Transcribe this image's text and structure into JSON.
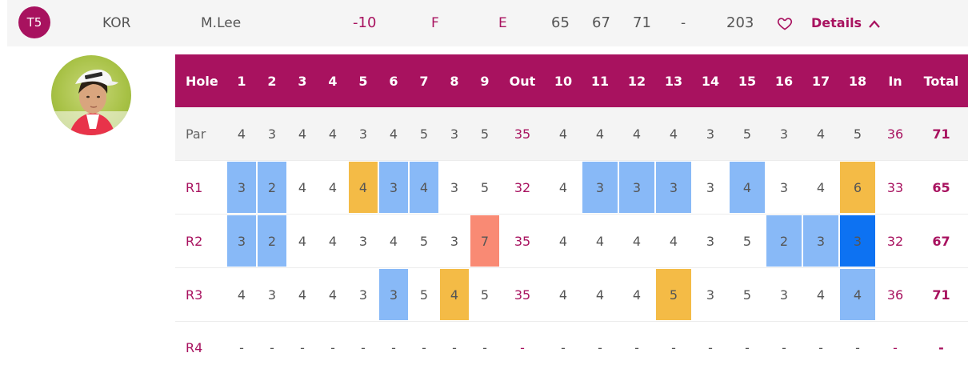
{
  "player": {
    "position": "T5",
    "country": "KOR",
    "name": "M.Lee",
    "to_par": "-10",
    "thru": "F",
    "today": "E",
    "rounds": [
      "65",
      "67",
      "71",
      "-"
    ],
    "total": "203",
    "details_label": "Details",
    "favorite_icon": "heart-icon",
    "expand_icon": "chevron-up-icon"
  },
  "colors": {
    "brand": "#a8125f",
    "birdie": "#88b9f7",
    "eagle": "#0d72f2",
    "bogey": "#f4bb46",
    "double_bogey": "#f98a74"
  },
  "scorecard": {
    "headers": [
      "Hole",
      "1",
      "2",
      "3",
      "4",
      "5",
      "6",
      "7",
      "8",
      "9",
      "Out",
      "10",
      "11",
      "12",
      "13",
      "14",
      "15",
      "16",
      "17",
      "18",
      "In",
      "Total"
    ],
    "rows": [
      {
        "label": "Par",
        "cells": [
          "4",
          "3",
          "4",
          "4",
          "3",
          "4",
          "5",
          "3",
          "5",
          "35",
          "4",
          "4",
          "4",
          "4",
          "3",
          "5",
          "3",
          "4",
          "5",
          "36",
          "71"
        ],
        "status": [
          "",
          "",
          "",
          "",
          "",
          "",
          "",
          "",
          "",
          "",
          "",
          "",
          "",
          "",
          "",
          "",
          "",
          "",
          "",
          "",
          ""
        ]
      },
      {
        "label": "R1",
        "cells": [
          "3",
          "2",
          "4",
          "4",
          "4",
          "3",
          "4",
          "3",
          "5",
          "32",
          "4",
          "3",
          "3",
          "3",
          "3",
          "4",
          "3",
          "4",
          "6",
          "33",
          "65"
        ],
        "status": [
          "birdie",
          "birdie",
          "",
          "",
          "bogey",
          "birdie",
          "birdie",
          "",
          "",
          "",
          "",
          "birdie",
          "birdie",
          "birdie",
          "",
          "birdie",
          "",
          "",
          "bogey",
          "",
          ""
        ]
      },
      {
        "label": "R2",
        "cells": [
          "3",
          "2",
          "4",
          "4",
          "3",
          "4",
          "5",
          "3",
          "7",
          "35",
          "4",
          "4",
          "4",
          "4",
          "3",
          "5",
          "2",
          "3",
          "3",
          "32",
          "67"
        ],
        "status": [
          "birdie",
          "birdie",
          "",
          "",
          "",
          "",
          "",
          "",
          "double",
          "",
          "",
          "",
          "",
          "",
          "",
          "",
          "birdie",
          "birdie",
          "eagle",
          "",
          ""
        ]
      },
      {
        "label": "R3",
        "cells": [
          "4",
          "3",
          "4",
          "4",
          "3",
          "3",
          "5",
          "4",
          "5",
          "35",
          "4",
          "4",
          "4",
          "5",
          "3",
          "5",
          "3",
          "4",
          "4",
          "36",
          "71"
        ],
        "status": [
          "",
          "",
          "",
          "",
          "",
          "birdie",
          "",
          "bogey",
          "",
          "",
          "",
          "",
          "",
          "bogey",
          "",
          "",
          "",
          "",
          "birdie",
          "",
          ""
        ]
      },
      {
        "label": "R4",
        "cells": [
          "-",
          "-",
          "-",
          "-",
          "-",
          "-",
          "-",
          "-",
          "-",
          "-",
          "-",
          "-",
          "-",
          "-",
          "-",
          "-",
          "-",
          "-",
          "-",
          "-",
          "-"
        ],
        "status": [
          "",
          "",
          "",
          "",
          "",
          "",
          "",
          "",
          "",
          "",
          "",
          "",
          "",
          "",
          "",
          "",
          "",
          "",
          "",
          "",
          ""
        ]
      }
    ]
  }
}
